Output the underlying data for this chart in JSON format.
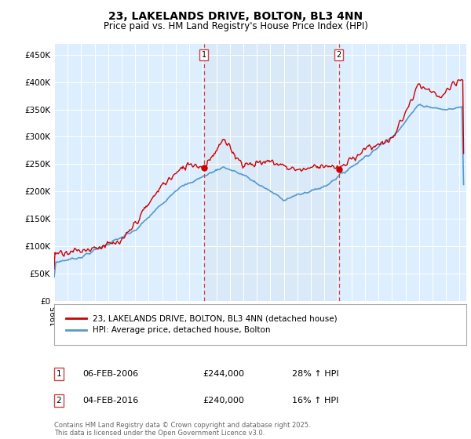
{
  "title": "23, LAKELANDS DRIVE, BOLTON, BL3 4NN",
  "subtitle": "Price paid vs. HM Land Registry's House Price Index (HPI)",
  "ylabel_ticks": [
    "£0",
    "£50K",
    "£100K",
    "£150K",
    "£200K",
    "£250K",
    "£300K",
    "£350K",
    "£400K",
    "£450K"
  ],
  "ytick_values": [
    0,
    50000,
    100000,
    150000,
    200000,
    250000,
    300000,
    350000,
    400000,
    450000
  ],
  "ylim": [
    0,
    470000
  ],
  "xlim_start": 1995.0,
  "xlim_end": 2025.5,
  "line1_label": "23, LAKELANDS DRIVE, BOLTON, BL3 4NN (detached house)",
  "line1_color": "#cc0000",
  "line2_label": "HPI: Average price, detached house, Bolton",
  "line2_color": "#5599cc",
  "shade_color": "#d8e8f4",
  "marker1_date": 2006.08,
  "marker1_price": 244000,
  "marker1_label": "06-FEB-2006",
  "marker1_amount": "£244,000",
  "marker1_hpi": "28% ↑ HPI",
  "marker2_date": 2016.08,
  "marker2_price": 240000,
  "marker2_label": "04-FEB-2016",
  "marker2_amount": "£240,000",
  "marker2_hpi": "16% ↑ HPI",
  "vline_color": "#cc4444",
  "background_color": "#ddeeff",
  "footer": "Contains HM Land Registry data © Crown copyright and database right 2025.\nThis data is licensed under the Open Government Licence v3.0.",
  "title_fontsize": 10,
  "subtitle_fontsize": 8.5,
  "tick_fontsize": 7.5
}
